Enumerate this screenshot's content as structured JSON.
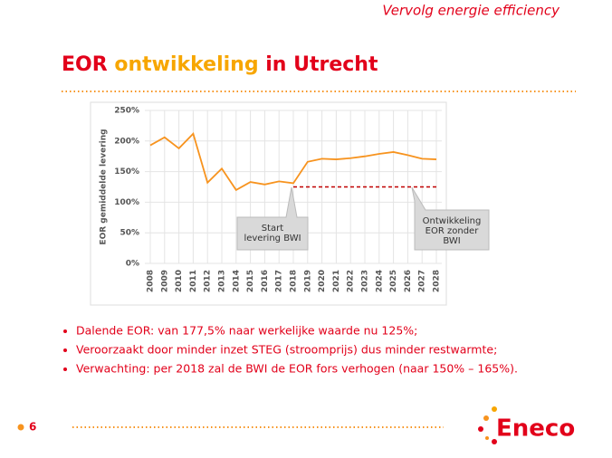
{
  "header": "Vervolg energie efficiency",
  "title": {
    "part1": "EOR ",
    "part2": "ontwikkeling",
    "part3": " in Utrecht"
  },
  "chart_data": {
    "type": "line",
    "ylabel": "EOR gemiddelde levering",
    "categories": [
      "2008",
      "2009",
      "2010",
      "2011",
      "2012",
      "2013",
      "2014",
      "2015",
      "2016",
      "2017",
      "2018",
      "2019",
      "2020",
      "2021",
      "2022",
      "2023",
      "2024",
      "2025",
      "2026",
      "2027",
      "2028"
    ],
    "series": [
      {
        "color": "#f7931e",
        "dash": false,
        "values": [
          193,
          206,
          188,
          212,
          132,
          155,
          120,
          133,
          129,
          134,
          131,
          166,
          171,
          170,
          172,
          175,
          179,
          182,
          177,
          171,
          170
        ]
      },
      {
        "color": "#c00000",
        "dash": true,
        "values": [
          null,
          null,
          null,
          null,
          null,
          null,
          null,
          null,
          null,
          null,
          125,
          125,
          125,
          125,
          125,
          125,
          125,
          125,
          125,
          125,
          125
        ]
      }
    ],
    "ylim": [
      0,
      250
    ],
    "yticks": [
      {
        "value": 0,
        "label": "0%"
      },
      {
        "value": 50,
        "label": "50%"
      },
      {
        "value": 100,
        "label": "100%"
      },
      {
        "value": 150,
        "label": "150%"
      },
      {
        "value": 200,
        "label": "200%"
      },
      {
        "value": 250,
        "label": "250%"
      }
    ],
    "grid": true,
    "annotations": [
      "Start levering BWI",
      "Ontwikkeling EOR zonder BWI"
    ]
  },
  "bullets": [
    "Dalende EOR: van 177,5% naar werkelijke waarde nu 125%;",
    "Veroorzaakt door minder inzet STEG (stroomprijs) dus minder restwarmte;",
    "Verwachting: per 2018 zal de BWI de EOR fors verhogen (naar 150% – 165%)."
  ],
  "page_number": "6",
  "logo": "Eneco"
}
